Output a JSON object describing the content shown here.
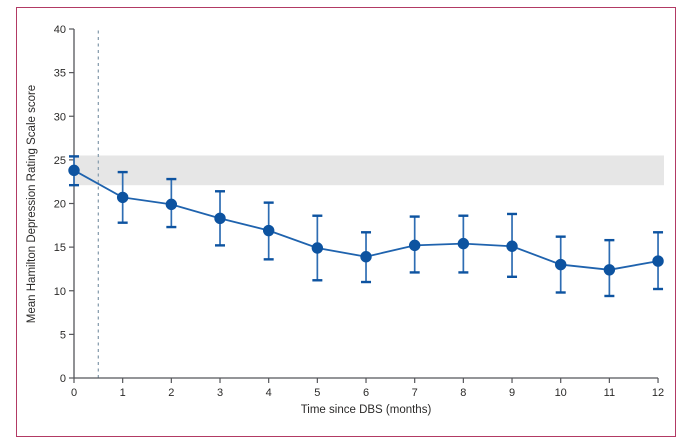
{
  "chart_data": {
    "type": "line",
    "title": "",
    "xlabel": "Time since DBS (months)",
    "ylabel": "Mean Hamilton Depression Rating Scale score",
    "x": [
      0,
      1,
      2,
      3,
      4,
      5,
      6,
      7,
      8,
      9,
      10,
      11,
      12
    ],
    "series": [
      {
        "name": "Mean Hamilton Depression Rating Scale score",
        "values": [
          23.8,
          20.7,
          19.9,
          18.3,
          16.9,
          14.9,
          13.9,
          15.2,
          15.4,
          15.1,
          13.0,
          12.4,
          13.4
        ],
        "ci_low": [
          22.1,
          17.8,
          17.3,
          15.2,
          13.6,
          11.2,
          11.0,
          12.1,
          12.1,
          11.6,
          9.8,
          9.4,
          10.2
        ],
        "ci_high": [
          25.4,
          23.6,
          22.8,
          21.4,
          20.1,
          18.6,
          16.7,
          18.5,
          18.6,
          18.8,
          16.2,
          15.8,
          16.7
        ]
      }
    ],
    "xlim": [
      0,
      12
    ],
    "ylim": [
      0,
      40
    ],
    "xticks": [
      0,
      1,
      2,
      3,
      4,
      5,
      6,
      7,
      8,
      9,
      10,
      11,
      12
    ],
    "yticks": [
      0,
      5,
      10,
      15,
      20,
      25,
      30,
      35,
      40
    ],
    "baseline_band": {
      "low": 22.1,
      "high": 25.5
    },
    "dashed_line_x": 0.5,
    "grid": "off",
    "legend": "none",
    "colors": {
      "line": "#1f63ae",
      "marker": "#0d53a0",
      "error_bar": "#2e6db3",
      "error_cap": "#0d53a0",
      "band": "#e6e6e6",
      "dashed": "#8ba0b0",
      "axis": "#55565a",
      "text": "#2b2a29",
      "frame_border": "#b23a64"
    }
  }
}
